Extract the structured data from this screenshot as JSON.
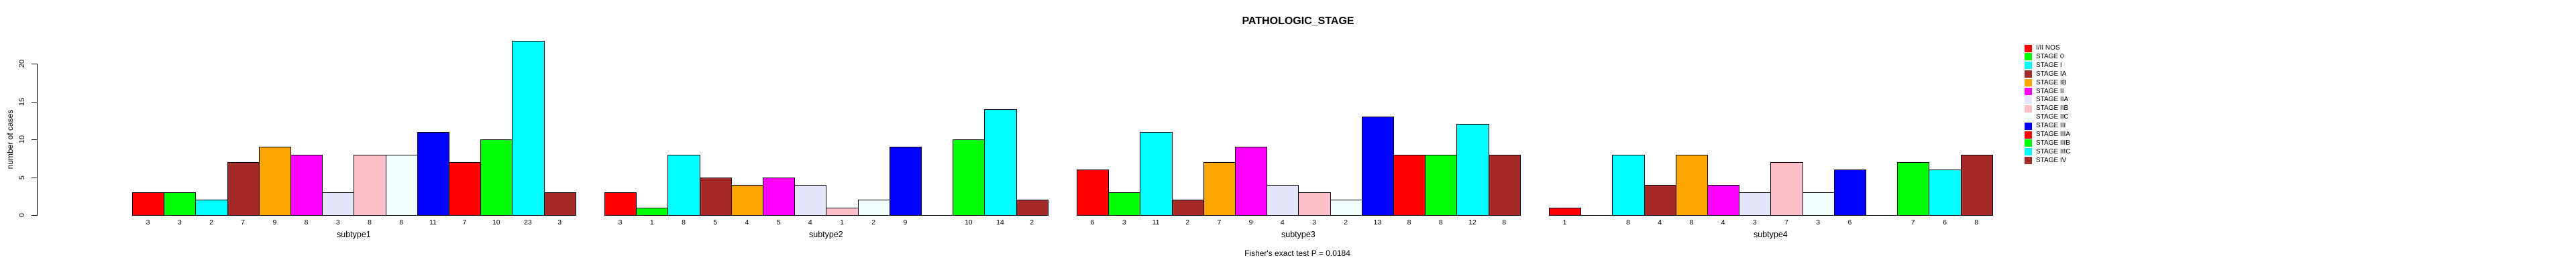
{
  "chart_data": {
    "type": "bar",
    "title": "PATHOLOGIC_STAGE",
    "ylabel": "number of cases",
    "footer": "Fisher's exact test P = 0.0184",
    "ylim": [
      0,
      23
    ],
    "yticks": [
      0,
      5,
      10,
      15,
      20
    ],
    "grid": false,
    "legend_position": "right",
    "bar_outline_color": "#000000",
    "palette": [
      "#FF0000",
      "#00FF00",
      "#00FFFF",
      "#A52A2A",
      "#FFA500",
      "#FF00FF",
      "#E6E6FA",
      "#FFC0CB",
      "#F0FFFF",
      "#0000FF"
    ],
    "categories": [
      "I/II NOS",
      "STAGE 0",
      "STAGE I",
      "STAGE IA",
      "STAGE IB",
      "STAGE II",
      "STAGE IIA",
      "STAGE IIB",
      "STAGE IIC",
      "STAGE III",
      "STAGE IIIA",
      "STAGE IIIB",
      "STAGE IIIC",
      "STAGE IV"
    ],
    "legend": [
      {
        "label": "I/II NOS",
        "color": "#FF0000"
      },
      {
        "label": "STAGE 0",
        "color": "#00FF00"
      },
      {
        "label": "STAGE I",
        "color": "#00FFFF"
      },
      {
        "label": "STAGE IA",
        "color": "#A52A2A"
      },
      {
        "label": "STAGE IB",
        "color": "#FFA500"
      },
      {
        "label": "STAGE II",
        "color": "#FF00FF"
      },
      {
        "label": "STAGE IIA",
        "color": "#E6E6FA"
      },
      {
        "label": "STAGE IIB",
        "color": "#FFC0CB"
      },
      {
        "label": "STAGE IIC",
        "color": "#F0FFFF"
      },
      {
        "label": "STAGE III",
        "color": "#0000FF"
      },
      {
        "label": "STAGE IIIA",
        "color": "#FF0000"
      },
      {
        "label": "STAGE IIIB",
        "color": "#00FF00"
      },
      {
        "label": "STAGE IIIC",
        "color": "#00FFFF"
      },
      {
        "label": "STAGE IV",
        "color": "#A52A2A"
      }
    ],
    "groups": [
      {
        "label": "subtype1",
        "values": [
          3,
          3,
          2,
          7,
          9,
          8,
          3,
          8,
          8,
          11,
          7,
          10,
          23,
          3
        ]
      },
      {
        "label": "subtype2",
        "values": [
          3,
          1,
          8,
          5,
          4,
          5,
          4,
          1,
          2,
          9,
          0,
          10,
          14,
          2
        ]
      },
      {
        "label": "subtype3",
        "values": [
          6,
          3,
          11,
          2,
          7,
          9,
          4,
          3,
          2,
          13,
          8,
          8,
          12,
          8
        ]
      },
      {
        "label": "subtype4",
        "values": [
          1,
          0,
          8,
          4,
          8,
          4,
          3,
          7,
          3,
          6,
          0,
          7,
          6,
          8
        ]
      }
    ]
  }
}
